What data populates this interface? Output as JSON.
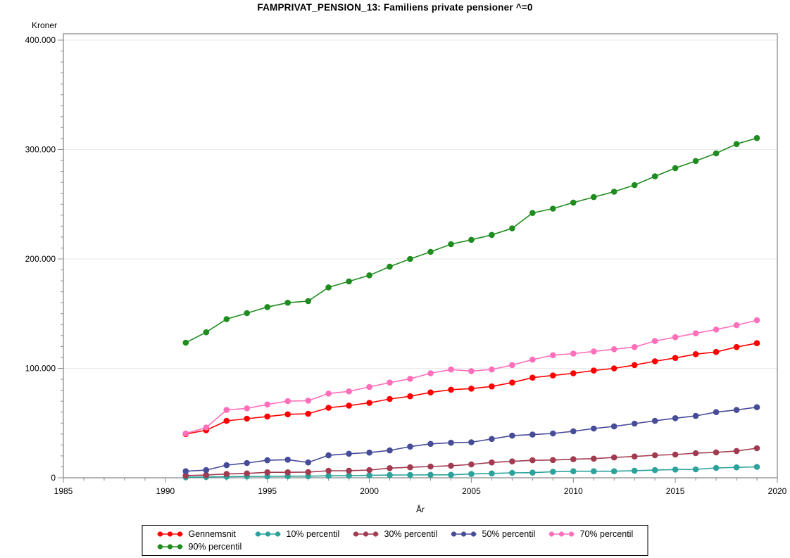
{
  "title": "FAMPRIVAT_PENSION_13: Familiens private pensioner ^=0",
  "colors": {
    "background": "#FFFFFF",
    "frame": "#8C8C8C",
    "grid": "#E9E9E9",
    "tick": "#8C8C8C",
    "text": "#000000"
  },
  "chart_data": {
    "type": "line",
    "title": "FAMPRIVAT_PENSION_13: Familiens private pensioner ^=0",
    "xlabel": "År",
    "ylabel": "Kroner",
    "xlim": [
      1985,
      2020
    ],
    "ylim": [
      0,
      400000
    ],
    "grid": "horizontal-major",
    "legend_position": "bottom",
    "x_tick_values": [
      1985,
      1990,
      1995,
      2000,
      2005,
      2010,
      2015,
      2020
    ],
    "x_tick_labels": [
      "1985",
      "1990",
      "1995",
      "2000",
      "2005",
      "2010",
      "2015",
      "2020"
    ],
    "y_tick_values": [
      0,
      100000,
      200000,
      300000,
      400000
    ],
    "y_tick_labels": [
      "0",
      "100.000",
      "200.000",
      "300.000",
      "400.000"
    ],
    "x": [
      1991,
      1992,
      1993,
      1994,
      1995,
      1996,
      1997,
      1998,
      1999,
      2000,
      2001,
      2002,
      2003,
      2004,
      2005,
      2006,
      2007,
      2008,
      2009,
      2010,
      2011,
      2012,
      2013,
      2014,
      2015,
      2016,
      2017,
      2018,
      2019
    ],
    "series": [
      {
        "name": "Gennemsnit",
        "slug": "gennemsnit",
        "color": "#FF0000",
        "values": [
          40000,
          43500,
          52000,
          54000,
          56000,
          58000,
          58500,
          64000,
          66000,
          68500,
          72000,
          74500,
          78000,
          80500,
          81500,
          83500,
          87000,
          91500,
          93500,
          95500,
          98000,
          100000,
          103000,
          106500,
          109500,
          113000,
          115000,
          119500,
          123000
        ]
      },
      {
        "name": "10% percentil",
        "slug": "10-percentil",
        "color": "#2BA29B",
        "values": [
          500,
          800,
          1000,
          1200,
          1300,
          1500,
          1500,
          1800,
          2000,
          2200,
          2500,
          2600,
          2700,
          2700,
          3500,
          4000,
          4500,
          4700,
          5500,
          6000,
          6000,
          6000,
          6500,
          7000,
          7500,
          7700,
          9000,
          9500,
          10000
        ]
      },
      {
        "name": "30% percentil",
        "slug": "30-percentil",
        "color": "#A23B50",
        "values": [
          2000,
          2500,
          3500,
          4000,
          5000,
          5000,
          5200,
          6400,
          6500,
          7100,
          8800,
          9600,
          10300,
          11000,
          12200,
          14000,
          15000,
          16000,
          16200,
          17000,
          17500,
          18600,
          19500,
          20600,
          21200,
          22500,
          23200,
          24500,
          27000
        ]
      },
      {
        "name": "50% percentil",
        "slug": "50-percentil",
        "color": "#474C99",
        "values": [
          6000,
          7000,
          11500,
          13500,
          16000,
          16500,
          14000,
          20500,
          22000,
          23000,
          25000,
          28500,
          31000,
          32000,
          32500,
          35500,
          38500,
          39500,
          40500,
          42500,
          45000,
          47000,
          49500,
          52000,
          54500,
          56500,
          60000,
          62000,
          64500
        ]
      },
      {
        "name": "70% percentil",
        "slug": "70-percentil",
        "color": "#FF6FBA",
        "values": [
          40500,
          46000,
          62000,
          63500,
          67000,
          70000,
          70500,
          77000,
          79000,
          83000,
          87000,
          90500,
          95500,
          99000,
          97500,
          99000,
          103000,
          108000,
          112000,
          113500,
          115500,
          117500,
          119500,
          125000,
          128500,
          132000,
          135500,
          139500,
          144000
        ]
      },
      {
        "name": "90% percentil",
        "slug": "90-percentil",
        "color": "#1F8C1F",
        "values": [
          123500,
          133000,
          145000,
          150500,
          156000,
          160000,
          161500,
          174000,
          179500,
          185000,
          193000,
          200000,
          206500,
          213500,
          217500,
          222000,
          228000,
          242000,
          246000,
          251500,
          256500,
          261500,
          267500,
          275500,
          283000,
          289500,
          296500,
          305000,
          310500
        ]
      }
    ]
  }
}
